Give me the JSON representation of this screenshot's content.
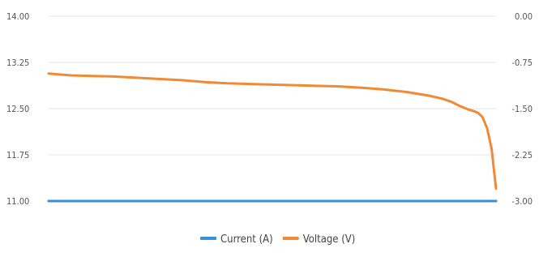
{
  "chart_data": {
    "type": "line",
    "y_left": {
      "ticks": [
        "14.00",
        "13.25",
        "12.50",
        "11.75",
        "11.00"
      ],
      "range": [
        11.0,
        14.0
      ]
    },
    "y_right": {
      "ticks": [
        "0.00",
        "-0.75",
        "-1.50",
        "-2.25",
        "-3.00"
      ],
      "range": [
        -3.0,
        0.0
      ]
    },
    "x": [
      0,
      0.05,
      0.1,
      0.15,
      0.2,
      0.25,
      0.3,
      0.35,
      0.4,
      0.45,
      0.5,
      0.55,
      0.6,
      0.65,
      0.7,
      0.75,
      0.8,
      0.85,
      0.88,
      0.9,
      0.92,
      0.94,
      0.95,
      0.96,
      0.97,
      0.98,
      0.99,
      1.0
    ],
    "grid": true,
    "legend_position": "bottom",
    "series": [
      {
        "name": "Current (A)",
        "color": "#3a8fd6",
        "axis": "right",
        "values": [
          -3.0,
          -3.0,
          -3.0,
          -3.0,
          -3.0,
          -3.0,
          -3.0,
          -3.0,
          -3.0,
          -3.0,
          -3.0,
          -3.0,
          -3.0,
          -3.0,
          -3.0,
          -3.0,
          -3.0,
          -3.0,
          -3.0,
          -3.0,
          -3.0,
          -3.0,
          -3.0,
          -3.0,
          -3.0,
          -3.0,
          -3.0,
          -3.0
        ]
      },
      {
        "name": "Voltage (V)",
        "color": "#f08a36",
        "axis": "left",
        "values": [
          13.07,
          13.04,
          13.03,
          13.02,
          13.0,
          12.98,
          12.96,
          12.93,
          12.91,
          12.9,
          12.89,
          12.88,
          12.87,
          12.86,
          12.84,
          12.81,
          12.77,
          12.71,
          12.66,
          12.61,
          12.54,
          12.48,
          12.46,
          12.43,
          12.36,
          12.18,
          11.85,
          11.2
        ]
      }
    ]
  }
}
